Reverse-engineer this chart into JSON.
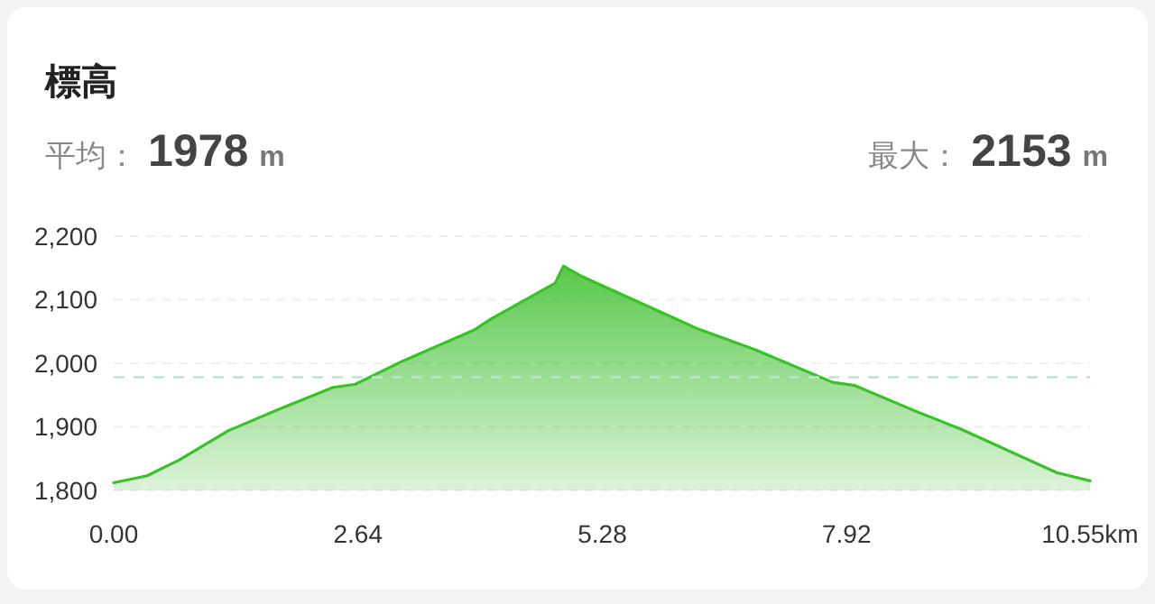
{
  "chart_data": {
    "type": "area",
    "title": "標高",
    "annotations": [
      "平均： 1978 m",
      "最大： 2153 m"
    ],
    "x": [
      0,
      0.36,
      0.71,
      1.24,
      1.79,
      2.37,
      2.61,
      3.13,
      3.89,
      4.08,
      4.77,
      4.86,
      5.04,
      5.34,
      6.3,
      6.94,
      7.77,
      8.01,
      8.66,
      9.16,
      10.19,
      10.55
    ],
    "series": [
      {
        "color": "#3cbf2c",
        "values": [
          1812,
          1823,
          1848,
          1894,
          1928,
          1962,
          1967,
          2004,
          2052,
          2070,
          2126,
          2153,
          2138,
          2118,
          2055,
          2021,
          1970,
          1965,
          1925,
          1896,
          1828,
          1815
        ]
      }
    ],
    "xlim": [
      0,
      10.55
    ],
    "xticks": [
      {
        "value": 0,
        "label": "0.00"
      },
      {
        "value": 2.64,
        "label": "2.64"
      },
      {
        "value": 5.28,
        "label": "5.28"
      },
      {
        "value": 7.92,
        "label": "7.92"
      },
      {
        "value": 10.55,
        "label": "10.55km"
      }
    ],
    "ylim": [
      1800,
      2200
    ],
    "yticks": [
      {
        "value": 1800,
        "label": "1,800"
      },
      {
        "value": 1900,
        "label": "1,900"
      },
      {
        "value": 2000,
        "label": "2,000"
      },
      {
        "value": 2100,
        "label": "2,100"
      },
      {
        "value": 2200,
        "label": "2,200"
      }
    ],
    "grid": "y",
    "marker": "none",
    "line_style": "solid",
    "ref_lines": [
      {
        "axis": "y",
        "value": 1978,
        "color": "#bfe3d2",
        "line_style": "dashed"
      }
    ]
  }
}
